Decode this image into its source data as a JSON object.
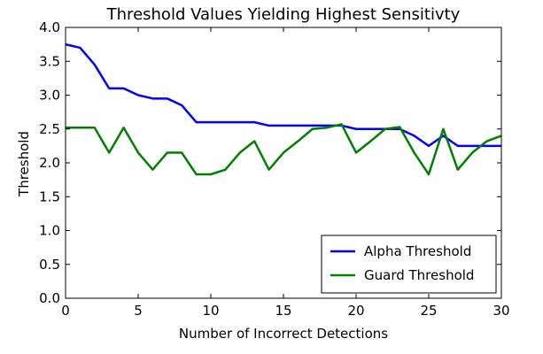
{
  "chart_data": {
    "type": "line",
    "title": "Threshold Values Yielding Highest Sensitivty",
    "xlabel": "Number of Incorrect Detections",
    "ylabel": "Threshold",
    "xlim": [
      0,
      30
    ],
    "ylim": [
      0.0,
      4.0
    ],
    "xticks": [
      "0",
      "5",
      "10",
      "15",
      "20",
      "25",
      "30"
    ],
    "yticks": [
      "0.0",
      "0.5",
      "1.0",
      "1.5",
      "2.0",
      "2.5",
      "3.0",
      "3.5",
      "4.0"
    ],
    "grid": false,
    "legend_position": "bottom-right",
    "x": [
      0,
      1,
      2,
      3,
      4,
      5,
      6,
      7,
      8,
      9,
      10,
      11,
      12,
      13,
      14,
      15,
      16,
      17,
      18,
      19,
      20,
      21,
      22,
      23,
      24,
      25,
      26,
      27,
      28,
      29,
      30
    ],
    "series": [
      {
        "name": "Alpha Threshold",
        "color": "#0000ff",
        "values": [
          3.75,
          3.7,
          3.45,
          3.1,
          3.1,
          3.0,
          2.95,
          2.95,
          2.85,
          2.6,
          2.6,
          2.6,
          2.6,
          2.6,
          2.55,
          2.55,
          2.55,
          2.55,
          2.55,
          2.55,
          2.5,
          2.5,
          2.5,
          2.5,
          2.4,
          2.25,
          2.4,
          2.25,
          2.25,
          2.25,
          2.25
        ]
      },
      {
        "name": "Guard Threshold",
        "color": "#008000",
        "values": [
          2.52,
          2.52,
          2.52,
          2.15,
          2.52,
          2.15,
          1.9,
          2.15,
          2.15,
          1.83,
          1.83,
          1.9,
          2.15,
          2.32,
          1.9,
          2.15,
          2.32,
          2.5,
          2.52,
          2.57,
          2.15,
          2.32,
          2.5,
          2.53,
          2.15,
          1.83,
          2.5,
          1.9,
          2.15,
          2.32,
          2.4
        ]
      }
    ]
  }
}
